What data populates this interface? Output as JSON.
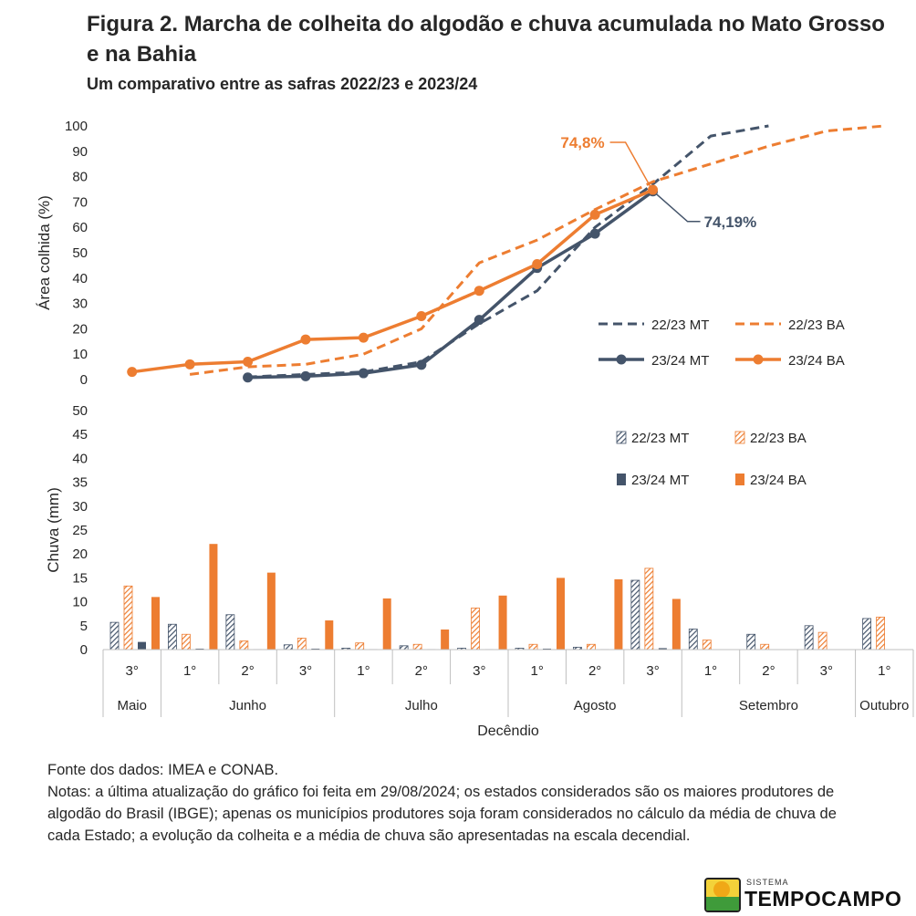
{
  "title": "Figura 2. Marcha de colheita do algodão e chuva acumulada no Mato Grosso e na Bahia",
  "subtitle": "Um comparativo entre as safras 2022/23 e 2023/24",
  "colors": {
    "mt": "#44546a",
    "ba": "#ed7d31",
    "axis": "#bfbfbf",
    "text": "#262626"
  },
  "chart_data": [
    {
      "type": "line",
      "ylabel": "Área colhida (%)",
      "ylim": [
        0,
        100
      ],
      "yticks": [
        0,
        10,
        20,
        30,
        40,
        50,
        60,
        70,
        80,
        90,
        100
      ],
      "x": [
        "Mai 3°",
        "Jun 1°",
        "Jun 2°",
        "Jun 3°",
        "Jul 1°",
        "Jul 2°",
        "Jul 3°",
        "Ago 1°",
        "Ago 2°",
        "Ago 3°",
        "Set 1°",
        "Set 2°",
        "Set 3°",
        "Out 1°"
      ],
      "series": [
        {
          "name": "22/23 MT",
          "style": "dashed",
          "values": [
            null,
            null,
            1,
            2,
            3,
            7,
            22,
            35,
            60,
            77,
            96,
            100,
            null,
            null
          ]
        },
        {
          "name": "22/23 BA",
          "style": "dashed",
          "values": [
            null,
            2,
            5,
            6,
            10,
            20,
            46,
            55,
            67,
            78,
            85,
            92,
            98,
            100
          ]
        },
        {
          "name": "23/24 MT",
          "style": "solid-marker",
          "values": [
            null,
            null,
            0.8,
            1.3,
            2.5,
            5.8,
            23.5,
            44,
            57.5,
            74.19,
            null,
            null,
            null,
            null
          ]
        },
        {
          "name": "23/24 BA",
          "style": "solid-marker",
          "values": [
            3,
            6,
            7,
            15.8,
            16.5,
            25,
            35,
            45.5,
            65,
            74.8,
            null,
            null,
            null,
            null
          ]
        }
      ],
      "annotations": [
        {
          "text": "74,8%",
          "series": "23/24 BA",
          "point": 9
        },
        {
          "text": "74,19%",
          "series": "23/24 MT",
          "point": 9
        }
      ]
    },
    {
      "type": "bar",
      "ylabel": "Chuva (mm)",
      "xlabel": "Decêndio",
      "ylim": [
        0,
        50
      ],
      "yticks": [
        0,
        5,
        10,
        15,
        20,
        25,
        30,
        35,
        40,
        45,
        50
      ],
      "categories": [
        "3°",
        "1°",
        "2°",
        "3°",
        "1°",
        "2°",
        "3°",
        "1°",
        "2°",
        "3°",
        "1°",
        "2°",
        "3°",
        "1°"
      ],
      "months": [
        {
          "label": "Maio",
          "span": 1
        },
        {
          "label": "Junho",
          "span": 3
        },
        {
          "label": "Julho",
          "span": 3
        },
        {
          "label": "Agosto",
          "span": 3
        },
        {
          "label": "Setembro",
          "span": 3
        },
        {
          "label": "Outubro",
          "span": 1
        }
      ],
      "series": [
        {
          "name": "22/23 MT",
          "pattern": "hatched",
          "values": [
            5.7,
            5.3,
            7.3,
            1.0,
            0.3,
            0.8,
            0.3,
            0.3,
            0.5,
            14.5,
            4.3,
            3.2,
            5.0,
            6.5
          ]
        },
        {
          "name": "22/23 BA",
          "pattern": "hatched",
          "values": [
            13.3,
            3.2,
            1.8,
            2.4,
            1.4,
            1.1,
            8.7,
            1.1,
            1.1,
            17.0,
            2.0,
            1.1,
            3.6,
            6.8
          ]
        },
        {
          "name": "23/24 MT",
          "pattern": "solid",
          "values": [
            1.6,
            0.2,
            0.1,
            0.2,
            0.1,
            0.1,
            0.1,
            0.2,
            0.1,
            0.3,
            0,
            0,
            0,
            0
          ]
        },
        {
          "name": "23/24 BA",
          "pattern": "solid",
          "values": [
            11.0,
            22.1,
            16.1,
            6.1,
            10.7,
            4.2,
            11.3,
            15.0,
            14.7,
            10.6,
            0,
            0,
            0,
            0
          ]
        }
      ]
    }
  ],
  "notes": {
    "source": "Fonte dos dados: IMEA e CONAB.",
    "text": "Notas: a última atualização do gráfico foi feita em 29/08/2024; os estados considerados são os maiores produtores de algodão do Brasil (IBGE); apenas os municípios produtores soja foram considerados no cálculo da média de chuva de cada Estado; a evolução da colheita e a média de chuva são apresentadas na escala decendial."
  },
  "logo": {
    "small": "SISTEMA",
    "text": "TEMPOCAMPO"
  }
}
